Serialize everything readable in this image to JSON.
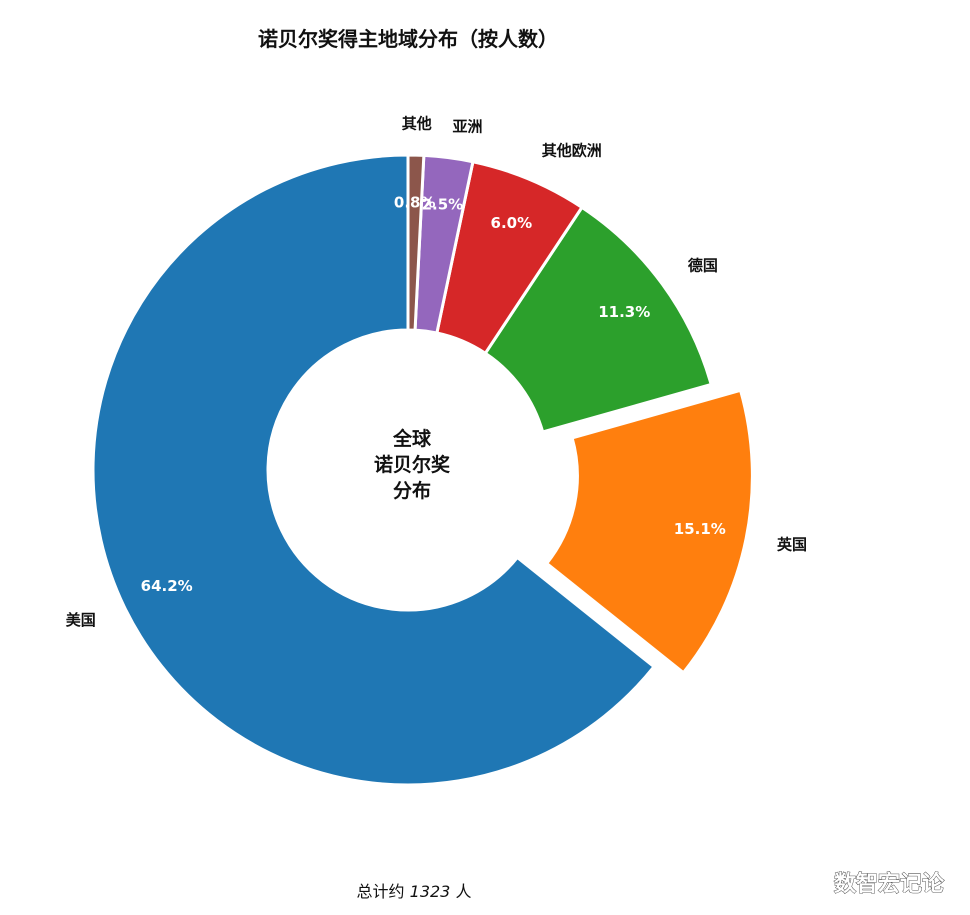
{
  "chart_data": {
    "type": "pie",
    "title": "诺贝尔奖得主地域分布（按人数）",
    "center_label": [
      "全球",
      "诺贝尔奖",
      "分布"
    ],
    "categories": [
      "美国",
      "英国",
      "德国",
      "其他欧洲",
      "亚洲",
      "其他"
    ],
    "values": [
      64.2,
      15.1,
      11.3,
      6.0,
      2.5,
      0.8
    ],
    "value_labels": [
      "64.2%",
      "15.1%",
      "11.3%",
      "6.0%",
      "2.5%",
      "0.8%"
    ],
    "colors": [
      "#1f77b4",
      "#ff7f0e",
      "#2ca02c",
      "#d62728",
      "#9467bd",
      "#8c564b"
    ],
    "exploded_category": "英国",
    "donut": true,
    "start": "top",
    "direction": "counterclockwise"
  },
  "footer": {
    "prefix": "总计约",
    "number": "1323",
    "suffix": "人"
  },
  "watermark": "数智宏记论"
}
